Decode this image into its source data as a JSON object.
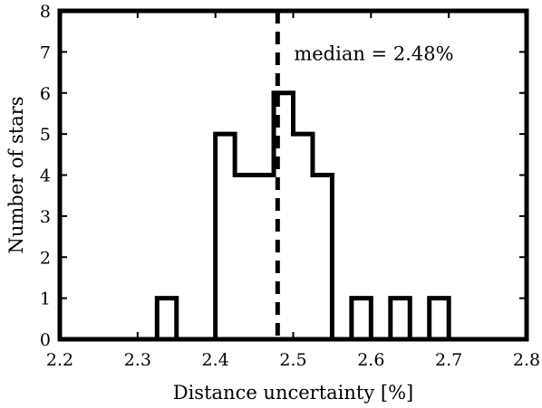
{
  "chart_data": {
    "type": "bar",
    "title": "",
    "xlabel": "Distance uncertainty [%]",
    "ylabel": "Number of stars",
    "xlim": [
      2.2,
      2.8
    ],
    "ylim": [
      0,
      8
    ],
    "xticks": [
      "2.2",
      "2.3",
      "2.4",
      "2.5",
      "2.6",
      "2.7",
      "2.8"
    ],
    "yticks": [
      "0",
      "1",
      "2",
      "3",
      "4",
      "5",
      "6",
      "7",
      "8"
    ],
    "bin_width": 0.025,
    "bins": [
      {
        "start": 2.325,
        "count": 1
      },
      {
        "start": 2.4,
        "count": 5
      },
      {
        "start": 2.425,
        "count": 4
      },
      {
        "start": 2.45,
        "count": 4
      },
      {
        "start": 2.475,
        "count": 6
      },
      {
        "start": 2.5,
        "count": 5
      },
      {
        "start": 2.525,
        "count": 4
      },
      {
        "start": 2.575,
        "count": 1
      },
      {
        "start": 2.625,
        "count": 1
      },
      {
        "start": 2.675,
        "count": 1
      }
    ],
    "median": 2.48,
    "annotation": "median = 2.48%",
    "grid": false,
    "legend": "none",
    "line_color": "#000000"
  }
}
